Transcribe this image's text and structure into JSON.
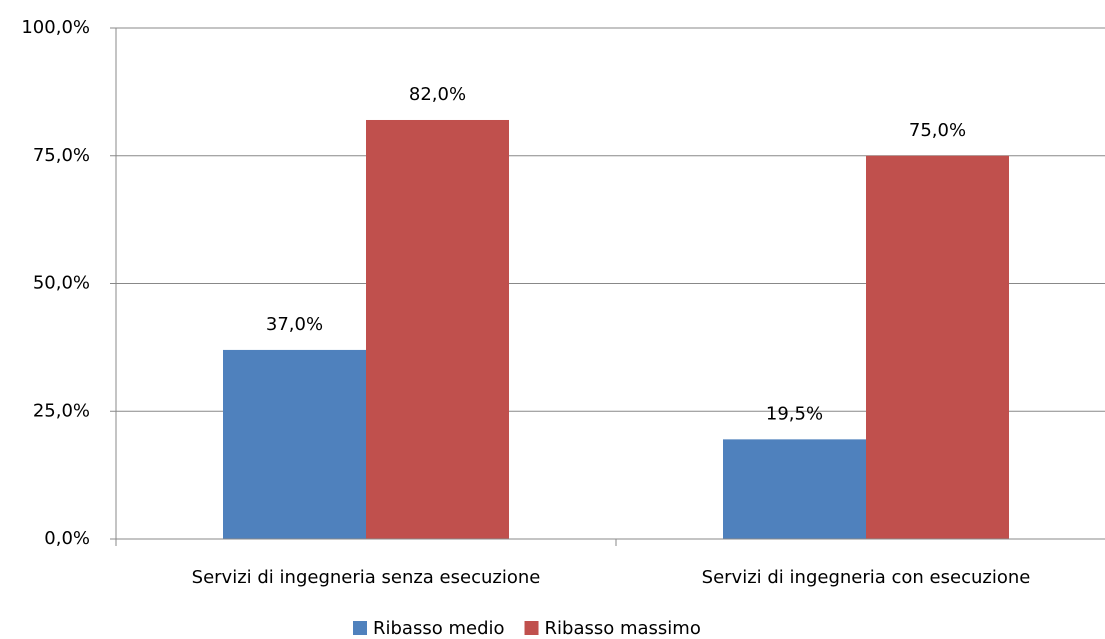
{
  "chart_data": {
    "type": "bar",
    "categories": [
      "Servizi di ingegneria senza esecuzione",
      "Servizi di ingegneria con esecuzione"
    ],
    "series": [
      {
        "name": "Ribasso medio",
        "color": "#4f81bd",
        "values": [
          37.0,
          19.5
        ],
        "value_labels": [
          "37,0%",
          "19,5%"
        ]
      },
      {
        "name": "Ribasso massimo",
        "color": "#c0504d",
        "values": [
          82.0,
          75.0
        ],
        "value_labels": [
          "82,0%",
          "75,0%"
        ]
      }
    ],
    "ylim": [
      0,
      100
    ],
    "yticks": [
      {
        "value": 0,
        "label": "0,0%"
      },
      {
        "value": 25,
        "label": "25,0%"
      },
      {
        "value": 50,
        "label": "50,0%"
      },
      {
        "value": 75,
        "label": "75,0%"
      },
      {
        "value": 100,
        "label": "100,0%"
      }
    ],
    "grid": true,
    "legend": "bottom"
  }
}
